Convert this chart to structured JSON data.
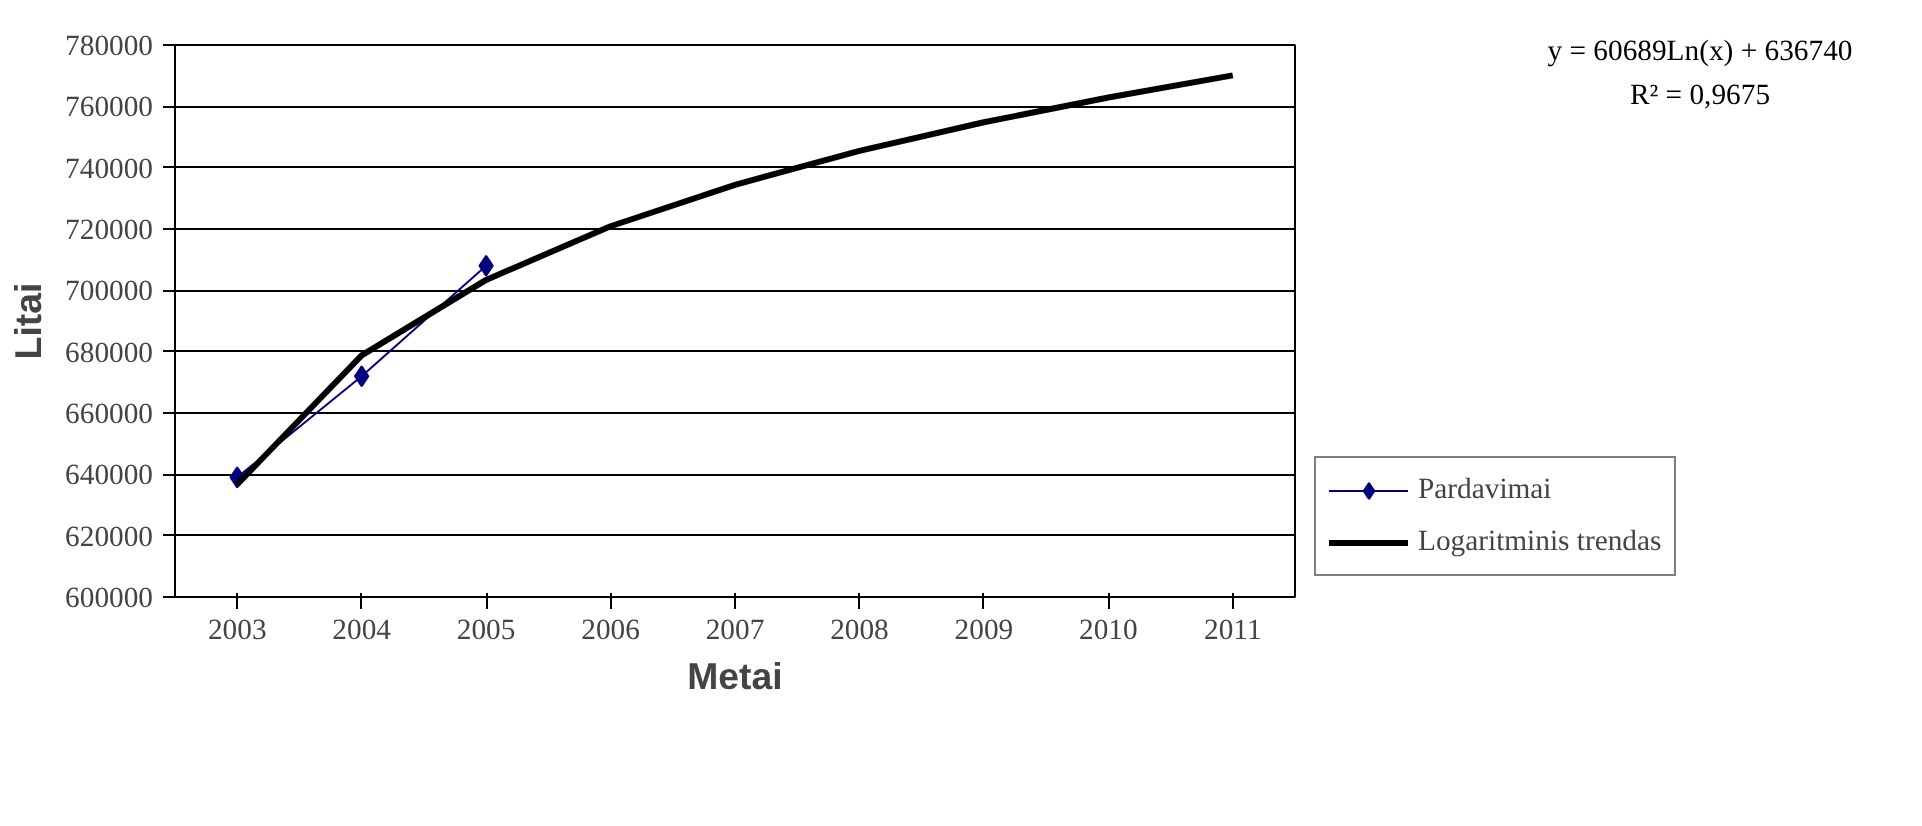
{
  "chart_data": {
    "type": "line",
    "xlabel": "Metai",
    "ylabel": "Litai",
    "x": [
      2003,
      2004,
      2005
    ],
    "xlim": [
      2002.5,
      2011.5
    ],
    "xticks": [
      2003,
      2004,
      2005,
      2006,
      2007,
      2008,
      2009,
      2010,
      2011
    ],
    "ylim": [
      600000,
      780000
    ],
    "yticks": [
      600000,
      620000,
      640000,
      660000,
      680000,
      700000,
      720000,
      740000,
      760000,
      780000
    ],
    "grid": "y",
    "legend": "right",
    "series": [
      {
        "name": "Pardavimai",
        "color": "#000080",
        "values": [
          639000,
          672000,
          708000
        ],
        "marker": "diamond"
      },
      {
        "name": "Logaritminis trendas",
        "color": "#000000",
        "type": "line",
        "marker": "none",
        "x": [
          2003,
          2004,
          2005,
          2006,
          2007,
          2008,
          2009,
          2010,
          2011
        ],
        "values": [
          636700,
          678800,
          703400,
          720900,
          734400,
          745500,
          754800,
          762900,
          770100
        ]
      }
    ],
    "annotations": [
      "y = 60689Ln(x) + 636740",
      "R² = 0,9675"
    ]
  }
}
